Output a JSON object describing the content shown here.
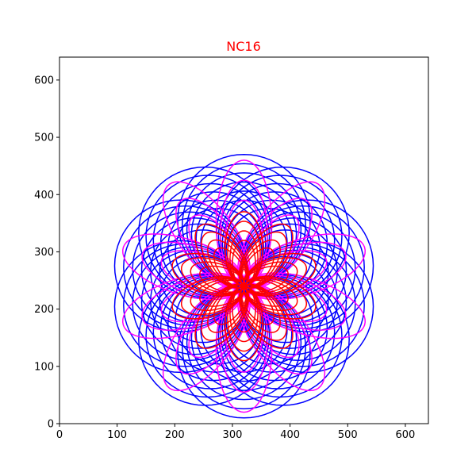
{
  "chart_data": {
    "type": "line",
    "title": "NC16",
    "title_color": "#ff0000",
    "xlabel": "",
    "ylabel": "",
    "xlim": [
      0,
      640
    ],
    "ylim": [
      0,
      640
    ],
    "xticks": [
      0,
      100,
      200,
      300,
      400,
      500,
      600
    ],
    "yticks": [
      0,
      100,
      200,
      300,
      400,
      500,
      600
    ],
    "grid": false,
    "legend": "none",
    "center": [
      320,
      240
    ],
    "petal_count": 10,
    "series": [
      {
        "color": "#0000ff",
        "shape": "circle-loops",
        "max_reach": [
          150,
          230
        ],
        "loop_width_ratio": 0.5,
        "layers": 6
      },
      {
        "color": "#ff00ff",
        "shape": "elliptic-petals",
        "max_reach": [
          150,
          220
        ],
        "loop_width_ratio": 0.22,
        "layers": 3
      },
      {
        "color": "#ff0000",
        "shape": "elliptic-petals",
        "max_reach": [
          80,
          130
        ],
        "loop_width_ratio": 0.25,
        "layers": 4
      }
    ]
  }
}
